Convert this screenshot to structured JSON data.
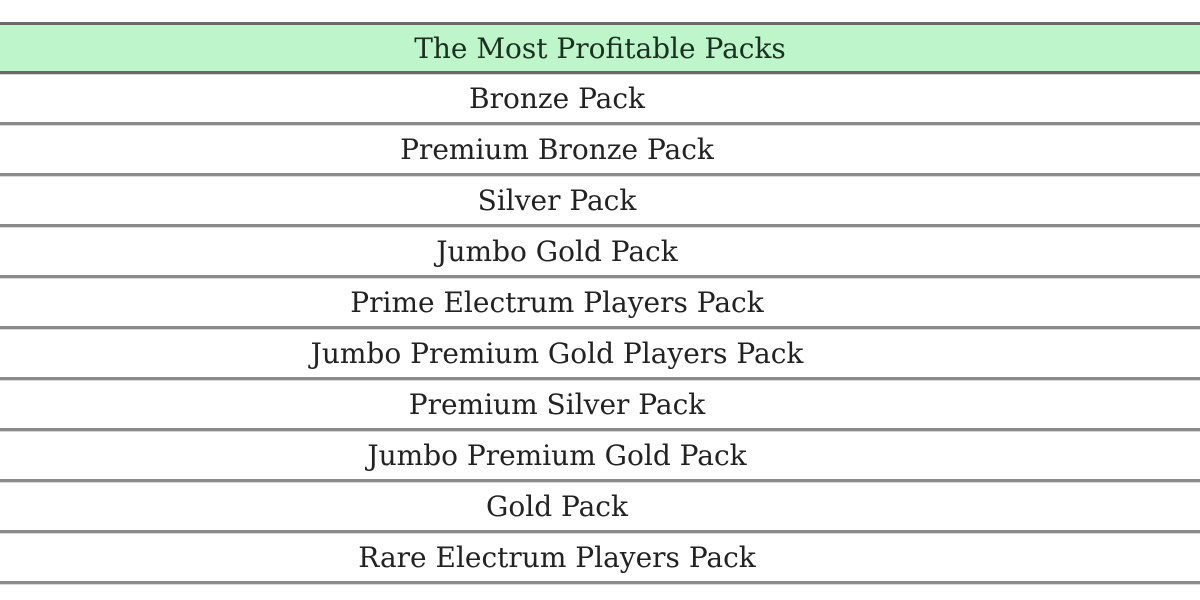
{
  "table": {
    "header": "The Most Profitable Packs",
    "header_color": "#bff5cb",
    "rows": [
      "Bronze Pack",
      "Premium Bronze Pack",
      "Silver Pack",
      "Jumbo Gold Pack",
      "Prime Electrum Players Pack",
      "Jumbo Premium Gold Players Pack",
      "Premium Silver Pack",
      "Jumbo Premium Gold Pack",
      "Gold Pack",
      "Rare Electrum Players Pack"
    ]
  }
}
